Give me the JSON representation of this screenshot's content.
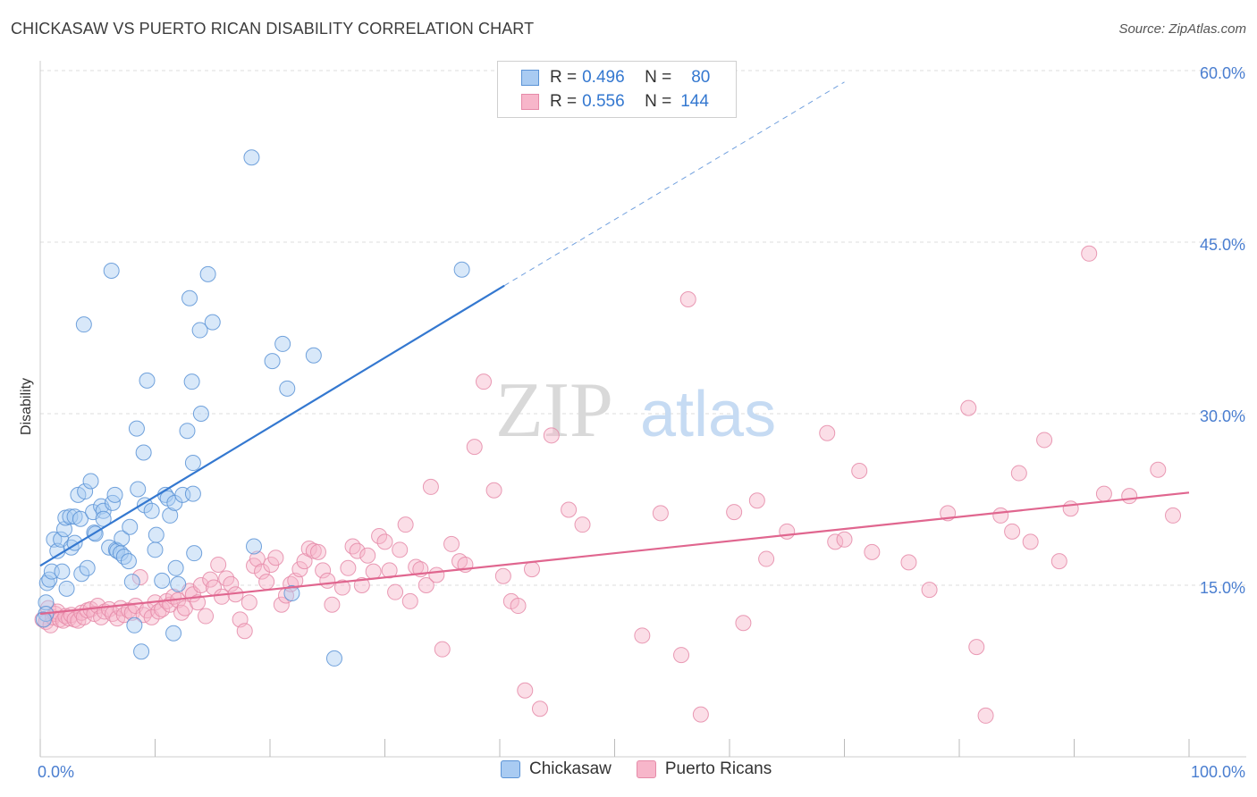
{
  "title": "CHICKASAW VS PUERTO RICAN DISABILITY CORRELATION CHART",
  "source": "Source: ZipAtlas.com",
  "watermark": {
    "part1": "ZIP",
    "part2": "atlas"
  },
  "legend": {
    "rows": [
      {
        "r_label": "R =",
        "r_value": "0.496",
        "n_label": "N =",
        "n_value": "80"
      },
      {
        "r_label": "R =",
        "r_value": "0.556",
        "n_label": "N =",
        "n_value": "144"
      }
    ]
  },
  "bottom_legend": {
    "series1": "Chickasaw",
    "series2": "Puerto Ricans"
  },
  "colors": {
    "chickasaw_fill": "#a9cbf2",
    "chickasaw_stroke": "#5b93d6",
    "chickasaw_line": "#3478d0",
    "puerto_fill": "#f7b6ca",
    "puerto_stroke": "#e58aa8",
    "puerto_line": "#e0668f",
    "axis_text": "#4a7ed0",
    "grid": "#dddddd"
  },
  "chart_data": {
    "type": "scatter",
    "title": "CHICKASAW VS PUERTO RICAN DISABILITY CORRELATION CHART",
    "xlabel": "",
    "ylabel": "Disability",
    "xlim": [
      0,
      100
    ],
    "ylim": [
      0,
      62
    ],
    "x_tick_labels": [
      "0.0%",
      "100.0%"
    ],
    "y_ticks": [
      15,
      30,
      45,
      60
    ],
    "y_tick_labels": [
      "15.0%",
      "30.0%",
      "45.0%",
      "60.0%"
    ],
    "grid": true,
    "legend_position": "top-center",
    "series": [
      {
        "name": "Chickasaw",
        "R": 0.496,
        "N": 80,
        "trend": {
          "x": [
            0,
            40.4
          ],
          "y": [
            16.7,
            41.2
          ]
        },
        "trend_dashed": {
          "x": [
            40.4,
            70.0
          ],
          "y": [
            41.2,
            59.0
          ]
        },
        "points": [
          [
            0.5,
            13.5
          ],
          [
            0.5,
            12.5
          ],
          [
            0.6,
            15.2
          ],
          [
            0.8,
            15.5
          ],
          [
            1.0,
            16.2
          ],
          [
            1.2,
            19.0
          ],
          [
            1.5,
            18.0
          ],
          [
            1.8,
            19.0
          ],
          [
            1.9,
            16.2
          ],
          [
            2.1,
            19.9
          ],
          [
            2.2,
            20.9
          ],
          [
            2.3,
            14.7
          ],
          [
            2.6,
            21.0
          ],
          [
            2.7,
            18.3
          ],
          [
            3.0,
            18.7
          ],
          [
            3.0,
            21.0
          ],
          [
            3.3,
            22.9
          ],
          [
            3.5,
            20.8
          ],
          [
            3.6,
            16.0
          ],
          [
            3.8,
            37.8
          ],
          [
            3.9,
            23.2
          ],
          [
            4.1,
            16.5
          ],
          [
            4.4,
            24.1
          ],
          [
            4.6,
            21.4
          ],
          [
            4.7,
            19.6
          ],
          [
            4.8,
            19.5
          ],
          [
            5.3,
            21.9
          ],
          [
            5.5,
            21.5
          ],
          [
            5.5,
            20.8
          ],
          [
            6.0,
            18.3
          ],
          [
            6.2,
            42.5
          ],
          [
            6.3,
            22.2
          ],
          [
            6.5,
            22.9
          ],
          [
            6.6,
            18.1
          ],
          [
            6.7,
            18.0
          ],
          [
            7.0,
            17.8
          ],
          [
            7.1,
            19.1
          ],
          [
            7.3,
            17.5
          ],
          [
            7.7,
            17.1
          ],
          [
            7.8,
            20.1
          ],
          [
            8.0,
            15.3
          ],
          [
            8.2,
            11.5
          ],
          [
            8.4,
            28.7
          ],
          [
            8.5,
            23.4
          ],
          [
            8.8,
            9.2
          ],
          [
            9.0,
            26.6
          ],
          [
            9.1,
            22.0
          ],
          [
            9.3,
            32.9
          ],
          [
            9.7,
            21.5
          ],
          [
            10.0,
            18.1
          ],
          [
            10.1,
            19.4
          ],
          [
            10.6,
            15.4
          ],
          [
            10.9,
            22.9
          ],
          [
            11.1,
            22.6
          ],
          [
            11.3,
            21.1
          ],
          [
            11.6,
            10.8
          ],
          [
            11.7,
            22.2
          ],
          [
            11.8,
            16.5
          ],
          [
            12.0,
            15.1
          ],
          [
            12.4,
            22.9
          ],
          [
            12.8,
            28.5
          ],
          [
            13.0,
            40.1
          ],
          [
            13.2,
            32.8
          ],
          [
            13.3,
            23.0
          ],
          [
            13.3,
            25.7
          ],
          [
            13.4,
            17.8
          ],
          [
            13.9,
            37.3
          ],
          [
            14.0,
            30.0
          ],
          [
            14.6,
            42.2
          ],
          [
            15.0,
            38.0
          ],
          [
            18.4,
            52.4
          ],
          [
            18.6,
            18.4
          ],
          [
            20.2,
            34.6
          ],
          [
            21.1,
            36.1
          ],
          [
            21.5,
            32.2
          ],
          [
            21.9,
            14.3
          ],
          [
            23.8,
            35.1
          ],
          [
            25.6,
            8.6
          ],
          [
            36.7,
            42.6
          ],
          [
            0.3,
            12.0
          ]
        ]
      },
      {
        "name": "Puerto Ricans",
        "R": 0.556,
        "N": 144,
        "trend": {
          "x": [
            0,
            100
          ],
          "y": [
            12.5,
            23.1
          ]
        },
        "points": [
          [
            0.2,
            12.0
          ],
          [
            0.5,
            11.8
          ],
          [
            0.7,
            13.0
          ],
          [
            0.9,
            11.5
          ],
          [
            1.1,
            12.2
          ],
          [
            1.3,
            12.5
          ],
          [
            1.5,
            12.7
          ],
          [
            1.7,
            12.0
          ],
          [
            2.0,
            11.9
          ],
          [
            2.2,
            12.3
          ],
          [
            2.5,
            12.1
          ],
          [
            2.7,
            12.4
          ],
          [
            3.0,
            12.0
          ],
          [
            3.3,
            11.9
          ],
          [
            3.6,
            12.6
          ],
          [
            3.8,
            12.2
          ],
          [
            4.1,
            12.8
          ],
          [
            4.4,
            12.9
          ],
          [
            4.7,
            12.5
          ],
          [
            5.0,
            13.2
          ],
          [
            5.3,
            12.2
          ],
          [
            5.6,
            12.7
          ],
          [
            6.0,
            12.9
          ],
          [
            6.3,
            12.5
          ],
          [
            6.7,
            12.1
          ],
          [
            7.0,
            13.0
          ],
          [
            7.3,
            12.4
          ],
          [
            7.7,
            12.8
          ],
          [
            8.0,
            12.6
          ],
          [
            8.3,
            13.2
          ],
          [
            8.7,
            15.7
          ],
          [
            9.0,
            12.4
          ],
          [
            9.3,
            12.8
          ],
          [
            9.7,
            12.2
          ],
          [
            10.0,
            13.5
          ],
          [
            10.3,
            12.7
          ],
          [
            10.6,
            12.9
          ],
          [
            11.0,
            13.6
          ],
          [
            11.3,
            13.3
          ],
          [
            11.6,
            14.0
          ],
          [
            12.0,
            13.7
          ],
          [
            12.3,
            12.6
          ],
          [
            12.6,
            13.0
          ],
          [
            13.0,
            14.5
          ],
          [
            13.3,
            14.2
          ],
          [
            13.7,
            13.5
          ],
          [
            14.0,
            15.0
          ],
          [
            14.4,
            12.3
          ],
          [
            14.8,
            15.5
          ],
          [
            15.1,
            14.8
          ],
          [
            15.5,
            16.8
          ],
          [
            15.8,
            14.0
          ],
          [
            16.2,
            15.6
          ],
          [
            16.6,
            15.1
          ],
          [
            17.0,
            14.2
          ],
          [
            17.4,
            12.0
          ],
          [
            17.8,
            11.0
          ],
          [
            18.2,
            13.5
          ],
          [
            18.6,
            16.7
          ],
          [
            18.9,
            17.3
          ],
          [
            19.3,
            16.2
          ],
          [
            19.7,
            15.3
          ],
          [
            20.1,
            16.8
          ],
          [
            20.5,
            17.4
          ],
          [
            21.0,
            13.3
          ],
          [
            21.4,
            14.1
          ],
          [
            21.8,
            15.1
          ],
          [
            22.2,
            15.4
          ],
          [
            22.6,
            16.4
          ],
          [
            23.0,
            17.1
          ],
          [
            23.4,
            18.2
          ],
          [
            23.8,
            18.0
          ],
          [
            24.2,
            17.9
          ],
          [
            24.6,
            16.3
          ],
          [
            25.0,
            15.4
          ],
          [
            25.4,
            13.3
          ],
          [
            26.3,
            14.8
          ],
          [
            26.8,
            16.5
          ],
          [
            27.2,
            18.4
          ],
          [
            27.6,
            18.0
          ],
          [
            28.0,
            15.0
          ],
          [
            28.5,
            17.6
          ],
          [
            29.0,
            16.2
          ],
          [
            29.5,
            19.3
          ],
          [
            30.0,
            18.8
          ],
          [
            30.4,
            16.3
          ],
          [
            30.9,
            14.4
          ],
          [
            31.3,
            18.1
          ],
          [
            31.8,
            20.3
          ],
          [
            32.2,
            13.6
          ],
          [
            32.7,
            16.6
          ],
          [
            33.1,
            16.4
          ],
          [
            33.6,
            15.0
          ],
          [
            34.0,
            23.6
          ],
          [
            34.5,
            15.9
          ],
          [
            35.0,
            9.4
          ],
          [
            35.8,
            18.6
          ],
          [
            36.5,
            17.1
          ],
          [
            37.0,
            16.8
          ],
          [
            37.8,
            27.1
          ],
          [
            38.6,
            32.8
          ],
          [
            39.5,
            23.3
          ],
          [
            40.3,
            15.8
          ],
          [
            41.0,
            13.6
          ],
          [
            41.6,
            13.2
          ],
          [
            42.2,
            5.8
          ],
          [
            42.8,
            16.4
          ],
          [
            43.5,
            4.2
          ],
          [
            44.5,
            28.1
          ],
          [
            46.0,
            21.6
          ],
          [
            47.2,
            20.3
          ],
          [
            52.4,
            10.6
          ],
          [
            54.0,
            21.3
          ],
          [
            55.8,
            8.9
          ],
          [
            56.4,
            40.0
          ],
          [
            57.5,
            3.7
          ],
          [
            60.4,
            21.4
          ],
          [
            61.2,
            11.7
          ],
          [
            62.4,
            22.4
          ],
          [
            63.2,
            17.3
          ],
          [
            65.0,
            19.7
          ],
          [
            68.5,
            28.3
          ],
          [
            69.2,
            18.8
          ],
          [
            70.0,
            19.0
          ],
          [
            71.3,
            25.0
          ],
          [
            72.4,
            17.9
          ],
          [
            75.6,
            17.0
          ],
          [
            77.4,
            14.6
          ],
          [
            79.0,
            21.3
          ],
          [
            80.8,
            30.5
          ],
          [
            81.5,
            9.6
          ],
          [
            82.3,
            3.6
          ],
          [
            83.6,
            21.1
          ],
          [
            84.6,
            19.7
          ],
          [
            85.2,
            24.8
          ],
          [
            86.2,
            18.8
          ],
          [
            87.4,
            27.7
          ],
          [
            88.7,
            17.1
          ],
          [
            89.7,
            21.7
          ],
          [
            91.3,
            44.0
          ],
          [
            92.6,
            23.0
          ],
          [
            94.8,
            22.8
          ],
          [
            97.3,
            25.1
          ],
          [
            98.6,
            21.1
          ]
        ]
      }
    ]
  }
}
